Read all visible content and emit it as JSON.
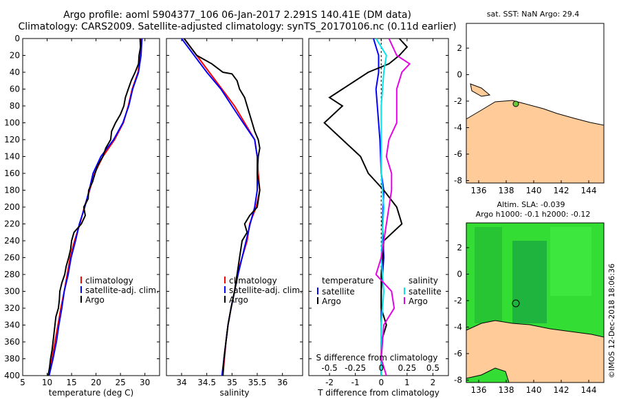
{
  "title": {
    "line1": "Argo profile: aoml 5904377_106 06-Jan-2017 2.291S 140.41E (DM data)",
    "line2": "Climatology: CARS2009. Satellite-adjusted climatology: synTS_20170106.nc (0.11d earlier)"
  },
  "colors": {
    "climatology": "#ff0000",
    "satellite": "#0000ff",
    "argo": "#000000",
    "sat_cyan": "#00e5ee",
    "argo_mag": "#e600e6",
    "land": "#ffcc99",
    "ocean_green": "#33dd33"
  },
  "chart_data": [
    {
      "type": "line",
      "name": "temperature",
      "xlabel": "temperature (deg C)",
      "xlim": [
        5,
        33
      ],
      "xticks": [
        "5",
        "10",
        "15",
        "20",
        "25",
        "30"
      ],
      "xtick_values": [
        5,
        10,
        15,
        20,
        25,
        30
      ],
      "ylim": [
        0,
        400
      ],
      "yticks": [
        "0",
        "20",
        "40",
        "60",
        "80",
        "100",
        "120",
        "140",
        "160",
        "180",
        "200",
        "220",
        "240",
        "260",
        "280",
        "300",
        "320",
        "340",
        "360",
        "380",
        "400"
      ],
      "legend": [
        "climatology",
        "satellite-adj. clim.",
        "Argo"
      ],
      "series": [
        {
          "name": "climatology",
          "color": "#ff0000",
          "points": [
            [
              29.3,
              0
            ],
            [
              29.1,
              20
            ],
            [
              28.6,
              40
            ],
            [
              27.4,
              60
            ],
            [
              26.6,
              80
            ],
            [
              25.6,
              100
            ],
            [
              23.8,
              120
            ],
            [
              21.4,
              140
            ],
            [
              19.7,
              160
            ],
            [
              18.7,
              180
            ],
            [
              17.6,
              200
            ],
            [
              16.7,
              220
            ],
            [
              15.6,
              240
            ],
            [
              14.7,
              260
            ],
            [
              14.1,
              280
            ],
            [
              13.5,
              300
            ],
            [
              12.8,
              320
            ],
            [
              12.2,
              340
            ],
            [
              11.6,
              360
            ],
            [
              11.0,
              380
            ],
            [
              10.3,
              400
            ]
          ]
        },
        {
          "name": "satellite-adj. clim.",
          "color": "#0000ff",
          "points": [
            [
              29.4,
              0
            ],
            [
              29.2,
              20
            ],
            [
              28.7,
              40
            ],
            [
              27.5,
              60
            ],
            [
              26.7,
              80
            ],
            [
              25.5,
              100
            ],
            [
              23.6,
              120
            ],
            [
              21.0,
              140
            ],
            [
              19.4,
              160
            ],
            [
              18.6,
              180
            ],
            [
              17.7,
              200
            ],
            [
              16.6,
              220
            ],
            [
              15.8,
              240
            ],
            [
              14.9,
              260
            ],
            [
              14.3,
              280
            ],
            [
              13.5,
              300
            ],
            [
              13.0,
              320
            ],
            [
              12.4,
              340
            ],
            [
              11.9,
              360
            ],
            [
              11.2,
              380
            ],
            [
              10.4,
              400
            ]
          ]
        },
        {
          "name": "Argo",
          "color": "#000000",
          "points": [
            [
              29.0,
              0
            ],
            [
              29.1,
              10
            ],
            [
              28.8,
              20
            ],
            [
              28.7,
              30
            ],
            [
              28.0,
              40
            ],
            [
              27.2,
              50
            ],
            [
              26.6,
              60
            ],
            [
              26.0,
              70
            ],
            [
              25.7,
              80
            ],
            [
              25.0,
              90
            ],
            [
              24.0,
              100
            ],
            [
              23.2,
              110
            ],
            [
              23.0,
              120
            ],
            [
              22.0,
              130
            ],
            [
              21.4,
              140
            ],
            [
              20.4,
              150
            ],
            [
              19.8,
              160
            ],
            [
              19.3,
              170
            ],
            [
              18.5,
              180
            ],
            [
              18.4,
              190
            ],
            [
              17.5,
              200
            ],
            [
              17.8,
              210
            ],
            [
              17.0,
              220
            ],
            [
              15.5,
              230
            ],
            [
              15.0,
              240
            ],
            [
              14.8,
              250
            ],
            [
              14.4,
              260
            ],
            [
              13.9,
              270
            ],
            [
              13.6,
              280
            ],
            [
              13.0,
              290
            ],
            [
              12.6,
              300
            ],
            [
              12.5,
              310
            ],
            [
              12.3,
              320
            ],
            [
              11.8,
              330
            ],
            [
              11.6,
              340
            ],
            [
              11.4,
              350
            ],
            [
              11.2,
              360
            ],
            [
              11.0,
              370
            ],
            [
              10.7,
              380
            ],
            [
              10.5,
              390
            ],
            [
              10.2,
              400
            ]
          ]
        }
      ]
    },
    {
      "type": "line",
      "name": "salinity",
      "xlabel": "salinity",
      "xlim": [
        33.7,
        36.4
      ],
      "xticks": [
        "34",
        "34.5",
        "35",
        "35.5",
        "36"
      ],
      "xtick_values": [
        34,
        34.5,
        35,
        35.5,
        36
      ],
      "ylim": [
        0,
        400
      ],
      "legend": [
        "climatology",
        "satellite-adj. clim.",
        "Argo"
      ],
      "series": [
        {
          "name": "climatology",
          "color": "#ff0000",
          "points": [
            [
              34.05,
              0
            ],
            [
              34.3,
              20
            ],
            [
              34.55,
              40
            ],
            [
              34.8,
              60
            ],
            [
              35.05,
              80
            ],
            [
              35.25,
              100
            ],
            [
              35.45,
              120
            ],
            [
              35.5,
              140
            ],
            [
              35.52,
              160
            ],
            [
              35.55,
              180
            ],
            [
              35.48,
              200
            ],
            [
              35.35,
              220
            ],
            [
              35.3,
              240
            ],
            [
              35.2,
              260
            ],
            [
              35.1,
              280
            ],
            [
              35.05,
              300
            ],
            [
              34.98,
              320
            ],
            [
              34.92,
              340
            ],
            [
              34.88,
              360
            ],
            [
              34.85,
              380
            ],
            [
              34.82,
              400
            ]
          ]
        },
        {
          "name": "satellite-adj. clim.",
          "color": "#0000ff",
          "points": [
            [
              34.0,
              0
            ],
            [
              34.25,
              20
            ],
            [
              34.5,
              40
            ],
            [
              34.78,
              60
            ],
            [
              35.0,
              80
            ],
            [
              35.22,
              100
            ],
            [
              35.45,
              120
            ],
            [
              35.5,
              140
            ],
            [
              35.5,
              160
            ],
            [
              35.5,
              180
            ],
            [
              35.45,
              200
            ],
            [
              35.36,
              220
            ],
            [
              35.28,
              240
            ],
            [
              35.2,
              260
            ],
            [
              35.12,
              280
            ],
            [
              35.05,
              300
            ],
            [
              34.98,
              320
            ],
            [
              34.92,
              340
            ],
            [
              34.88,
              360
            ],
            [
              34.84,
              380
            ],
            [
              34.8,
              400
            ]
          ]
        },
        {
          "name": "Argo",
          "color": "#000000",
          "points": [
            [
              34.05,
              0
            ],
            [
              34.3,
              20
            ],
            [
              34.6,
              30
            ],
            [
              34.82,
              40
            ],
            [
              35.0,
              42
            ],
            [
              35.1,
              50
            ],
            [
              35.15,
              60
            ],
            [
              35.25,
              70
            ],
            [
              35.3,
              80
            ],
            [
              35.35,
              90
            ],
            [
              35.4,
              100
            ],
            [
              35.45,
              110
            ],
            [
              35.52,
              120
            ],
            [
              35.55,
              130
            ],
            [
              35.52,
              140
            ],
            [
              35.5,
              160
            ],
            [
              35.55,
              180
            ],
            [
              35.5,
              200
            ],
            [
              35.35,
              210
            ],
            [
              35.25,
              220
            ],
            [
              35.3,
              230
            ],
            [
              35.2,
              240
            ],
            [
              35.15,
              260
            ],
            [
              35.1,
              280
            ],
            [
              35.05,
              300
            ],
            [
              34.98,
              320
            ],
            [
              34.92,
              340
            ],
            [
              34.88,
              360
            ],
            [
              34.84,
              380
            ],
            [
              34.82,
              400
            ]
          ]
        }
      ]
    },
    {
      "type": "line",
      "name": "difference",
      "xlabel": "T difference from climatology",
      "xlim": [
        -2.8,
        2.6
      ],
      "xticks": [
        "-2",
        "-1",
        "0",
        "1",
        "2"
      ],
      "xtick_values": [
        -2,
        -1,
        0,
        1,
        2
      ],
      "top_label": "S difference from climatology",
      "top_ticks": [
        "-0.5",
        "-0.25",
        "0",
        "0.25",
        "0.5"
      ],
      "top_tick_values": [
        -2.0,
        -1.0,
        0,
        1.0,
        2.0
      ],
      "ylim": [
        0,
        400
      ],
      "legend_temperature": {
        "title": "temperature",
        "items": [
          "satellite",
          "Argo"
        ]
      },
      "legend_salinity": {
        "title": "salinity",
        "items": [
          "satellite",
          "Argo"
        ]
      },
      "series": [
        {
          "name": "temperature satellite",
          "color": "#0000ff",
          "points": [
            [
              -0.3,
              0
            ],
            [
              -0.1,
              20
            ],
            [
              -0.1,
              40
            ],
            [
              -0.2,
              60
            ],
            [
              -0.15,
              80
            ],
            [
              -0.05,
              120
            ],
            [
              0,
              160
            ],
            [
              0.1,
              180
            ],
            [
              0.05,
              220
            ],
            [
              0.1,
              260
            ],
            [
              0,
              300
            ],
            [
              0,
              340
            ],
            [
              0,
              400
            ]
          ]
        },
        {
          "name": "temperature Argo",
          "color": "#000000",
          "points": [
            [
              0.7,
              0
            ],
            [
              1.0,
              10
            ],
            [
              0.7,
              20
            ],
            [
              0.3,
              30
            ],
            [
              -0.5,
              40
            ],
            [
              -1.5,
              60
            ],
            [
              -2.0,
              70
            ],
            [
              -1.5,
              80
            ],
            [
              -2.2,
              100
            ],
            [
              -1.5,
              120
            ],
            [
              -0.8,
              140
            ],
            [
              -0.5,
              160
            ],
            [
              0.1,
              180
            ],
            [
              0.6,
              200
            ],
            [
              0.8,
              220
            ],
            [
              0.1,
              240
            ],
            [
              0,
              280
            ],
            [
              0,
              320
            ],
            [
              0.2,
              340
            ],
            [
              0,
              360
            ],
            [
              0,
              400
            ]
          ]
        },
        {
          "name": "salinity satellite",
          "color": "#00e5ee",
          "points": [
            [
              -0.2,
              0
            ],
            [
              0.0,
              10
            ],
            [
              0.2,
              20
            ],
            [
              0.1,
              40
            ],
            [
              0.0,
              80
            ],
            [
              0.0,
              160
            ],
            [
              0.1,
              200
            ],
            [
              0.0,
              260
            ],
            [
              0.1,
              300
            ],
            [
              0.0,
              340
            ],
            [
              0.0,
              400
            ]
          ]
        },
        {
          "name": "salinity Argo",
          "color": "#e600e6",
          "points": [
            [
              0.3,
              0
            ],
            [
              0.6,
              20
            ],
            [
              1.1,
              30
            ],
            [
              0.8,
              40
            ],
            [
              0.6,
              60
            ],
            [
              0.6,
              80
            ],
            [
              0.6,
              100
            ],
            [
              0.3,
              120
            ],
            [
              0.2,
              140
            ],
            [
              0.4,
              160
            ],
            [
              0.4,
              180
            ],
            [
              0.2,
              220
            ],
            [
              0.0,
              260
            ],
            [
              -0.2,
              280
            ],
            [
              0.4,
              300
            ],
            [
              0.5,
              320
            ],
            [
              0.1,
              340
            ],
            [
              0.0,
              380
            ],
            [
              0.2,
              400
            ]
          ]
        }
      ]
    }
  ],
  "maps": {
    "sst": {
      "title": "sat. SST: NaN Argo: 29.4",
      "xticks": [
        "136",
        "138",
        "140",
        "142",
        "144"
      ],
      "yticks": [
        "2",
        "0",
        "-2",
        "-4",
        "-6",
        "-8"
      ]
    },
    "sla": {
      "title1": "Altim. SLA: -0.039",
      "title2": "Argo h1000: -0.1 h2000: -0.12",
      "xticks": [
        "136",
        "138",
        "140",
        "142",
        "144"
      ],
      "yticks": [
        "2",
        "0",
        "-2",
        "-4",
        "-6",
        "-8"
      ]
    },
    "credit": "©IMOS 12-Dec-2018 18:06:36"
  }
}
